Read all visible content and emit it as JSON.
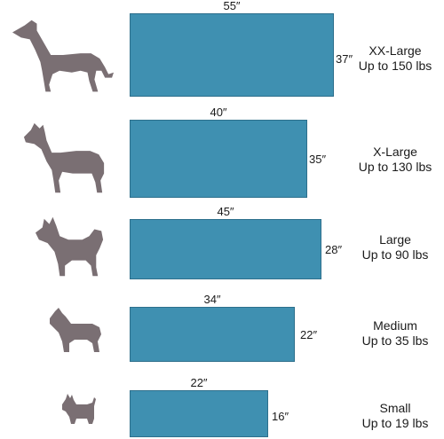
{
  "colors": {
    "bed": "#3f90b1",
    "bed_border": "#2d6f8c",
    "dog": "#7a6f73",
    "text": "#1a1a1a"
  },
  "sizes": [
    {
      "name": "XX-Large",
      "weight": "Up to 150 lbs",
      "width": "55″",
      "depth": "37″",
      "icon": "greyhound-icon"
    },
    {
      "name": "X-Large",
      "weight": "Up to 130 lbs",
      "width": "40″",
      "depth": "35″",
      "icon": "great-dane-icon"
    },
    {
      "name": "Large",
      "weight": "Up to 90 lbs",
      "width": "45″",
      "depth": "28″",
      "icon": "husky-icon"
    },
    {
      "name": "Medium",
      "weight": "Up to 35 lbs",
      "width": "34″",
      "depth": "22″",
      "icon": "pitbull-icon"
    },
    {
      "name": "Small",
      "weight": "Up to 19 lbs",
      "width": "22″",
      "depth": "16″",
      "icon": "scottie-icon"
    }
  ]
}
